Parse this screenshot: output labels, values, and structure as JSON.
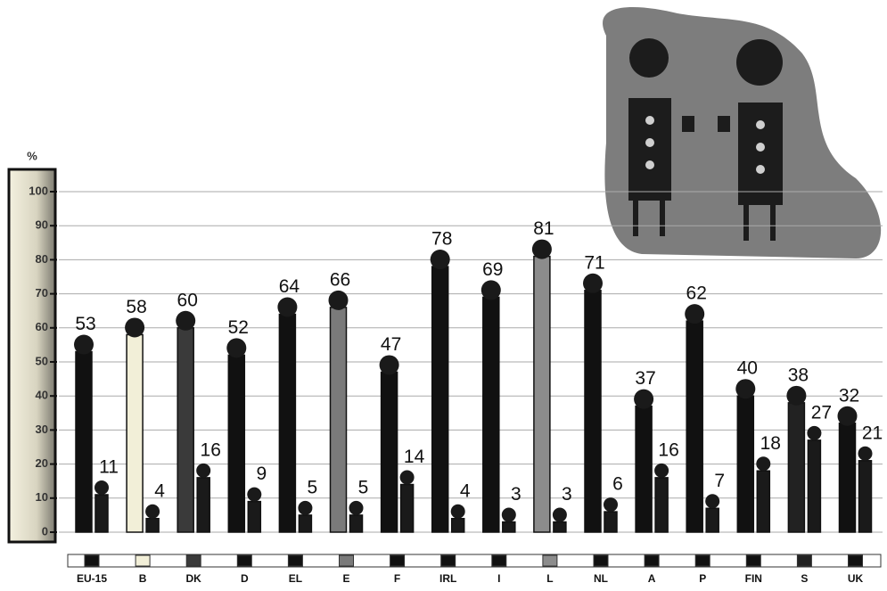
{
  "chart_data": {
    "type": "bar",
    "y_label": "%",
    "categories": [
      "EU-15",
      "B",
      "DK",
      "D",
      "EL",
      "E",
      "F",
      "IRL",
      "I",
      "L",
      "NL",
      "A",
      "P",
      "FIN",
      "S",
      "UK"
    ],
    "series": [
      {
        "colors": [
          "#111111",
          "#f2efd8",
          "#3a3a3a",
          "#111111",
          "#111111",
          "#7a7a7a",
          "#111111",
          "#111111",
          "#111111",
          "#8c8c8c",
          "#111111",
          "#111111",
          "#111111",
          "#111111",
          "#222222",
          "#111111"
        ],
        "values": [
          53,
          58,
          60,
          52,
          64,
          66,
          47,
          78,
          69,
          81,
          71,
          37,
          62,
          40,
          38,
          32
        ]
      },
      {
        "colors": [
          "#1a1a1a",
          "#1a1a1a",
          "#1a1a1a",
          "#1a1a1a",
          "#1a1a1a",
          "#1a1a1a",
          "#1a1a1a",
          "#1a1a1a",
          "#1a1a1a",
          "#1a1a1a",
          "#1a1a1a",
          "#1a1a1a",
          "#1a1a1a",
          "#1a1a1a",
          "#1a1a1a",
          "#1a1a1a"
        ],
        "values": [
          11,
          4,
          16,
          9,
          5,
          5,
          14,
          4,
          3,
          3,
          6,
          16,
          7,
          18,
          27,
          21
        ]
      }
    ],
    "ylim": [
      0,
      100
    ],
    "yticks": [
      0,
      10,
      20,
      30,
      40,
      50,
      60,
      70,
      80,
      90,
      100
    ],
    "grid": true
  }
}
